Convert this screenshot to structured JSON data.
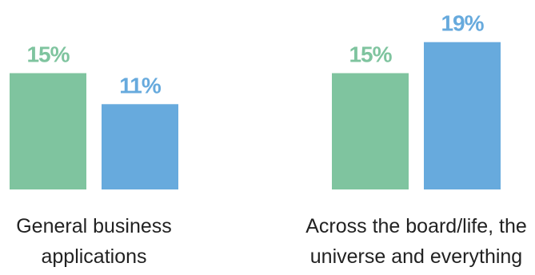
{
  "chart_data": {
    "type": "bar",
    "title": "",
    "xlabel": "",
    "ylabel": "",
    "ylim": [
      0,
      20
    ],
    "grid": false,
    "legend": "none",
    "categories": [
      [
        "General business",
        "applications"
      ],
      [
        "Across the board/life, the",
        "universe and everything"
      ]
    ],
    "series": [
      {
        "color": "#7fc49f",
        "label_color": "#7fc49f",
        "values": [
          15,
          15
        ],
        "value_labels": [
          "15%",
          "15%"
        ]
      },
      {
        "color": "#67aadd",
        "label_color": "#67aadd",
        "values": [
          11,
          19
        ],
        "value_labels": [
          "11%",
          "19%"
        ]
      }
    ]
  }
}
